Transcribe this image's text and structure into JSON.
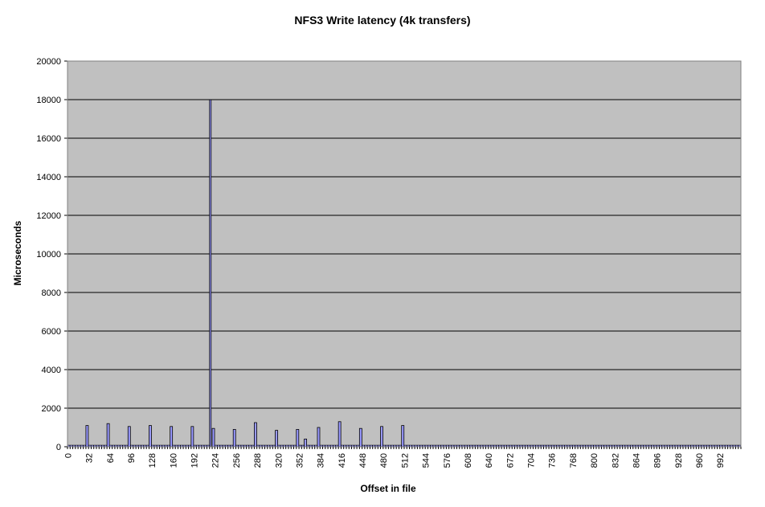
{
  "chart_data": {
    "type": "bar",
    "title": "NFS3 Write latency (4k transfers)",
    "xlabel": "Offset in file",
    "ylabel": "Microseconds",
    "ylim": [
      0,
      20000
    ],
    "yticks": [
      0,
      2000,
      4000,
      6000,
      8000,
      10000,
      12000,
      14000,
      16000,
      18000,
      20000
    ],
    "xticks": [
      0,
      32,
      64,
      96,
      128,
      160,
      192,
      224,
      256,
      288,
      320,
      352,
      384,
      416,
      448,
      480,
      512,
      544,
      576,
      608,
      640,
      672,
      704,
      736,
      768,
      800,
      832,
      864,
      896,
      928,
      960,
      992
    ],
    "xlim": [
      0,
      1023
    ],
    "grid": true,
    "baseline_value": 80,
    "baseline_range": [
      0,
      1023
    ],
    "spikes": [
      {
        "x": 28,
        "value": 1100
      },
      {
        "x": 60,
        "value": 1200
      },
      {
        "x": 92,
        "value": 1050
      },
      {
        "x": 124,
        "value": 1100
      },
      {
        "x": 156,
        "value": 1050
      },
      {
        "x": 188,
        "value": 1050
      },
      {
        "x": 216,
        "value": 18000
      },
      {
        "x": 220,
        "value": 950
      },
      {
        "x": 252,
        "value": 900
      },
      {
        "x": 284,
        "value": 1250
      },
      {
        "x": 316,
        "value": 850
      },
      {
        "x": 348,
        "value": 900
      },
      {
        "x": 360,
        "value": 400
      },
      {
        "x": 380,
        "value": 1000
      },
      {
        "x": 412,
        "value": 1300
      },
      {
        "x": 444,
        "value": 950
      },
      {
        "x": 476,
        "value": 1050
      },
      {
        "x": 508,
        "value": 1100
      }
    ],
    "colors": {
      "plot_background": "#c0c0c0",
      "gridline": "#000000",
      "bar_fill": "#9999ff",
      "bar_stroke": "#000000"
    }
  }
}
